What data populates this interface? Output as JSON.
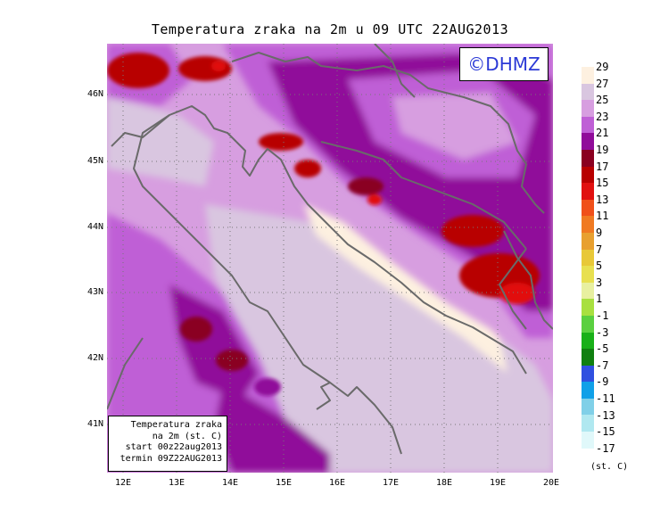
{
  "title": "Temperatura zraka na 2m u 09 UTC 22AUG2013",
  "logo": "©DHMZ",
  "infobox": {
    "line1": "Temperatura zraka",
    "line2": "na 2m (st. C)",
    "line3": "start 00z22aug2013",
    "line4": "termin 09Z22AUG2013"
  },
  "lat_labels": [
    "46N",
    "45N",
    "44N",
    "43N",
    "42N",
    "41N"
  ],
  "lon_labels": [
    "12E",
    "13E",
    "14E",
    "15E",
    "16E",
    "17E",
    "18E",
    "19E",
    "20E"
  ],
  "colorbar": {
    "labels": [
      "29",
      "27",
      "25",
      "23",
      "21",
      "19",
      "17",
      "15",
      "13",
      "11",
      "9",
      "7",
      "5",
      "3",
      "1",
      "-1",
      "-3",
      "-5",
      "-7",
      "-9",
      "-11",
      "-13",
      "-15",
      "-17"
    ],
    "colors": [
      "#fdf0e0",
      "#d9c6e0",
      "#d79ee0",
      "#bf5fd6",
      "#900c9a",
      "#8a0020",
      "#b80000",
      "#e11010",
      "#f0501a",
      "#f07a22",
      "#e8a030",
      "#e8c838",
      "#e8e050",
      "#e8f0a0",
      "#a8e040",
      "#5ad040",
      "#18b018",
      "#108010",
      "#3050e0",
      "#10a0e8",
      "#80d0e8",
      "#b0e8f0",
      "#e0f8fa"
    ],
    "unit": "(st. C)"
  }
}
